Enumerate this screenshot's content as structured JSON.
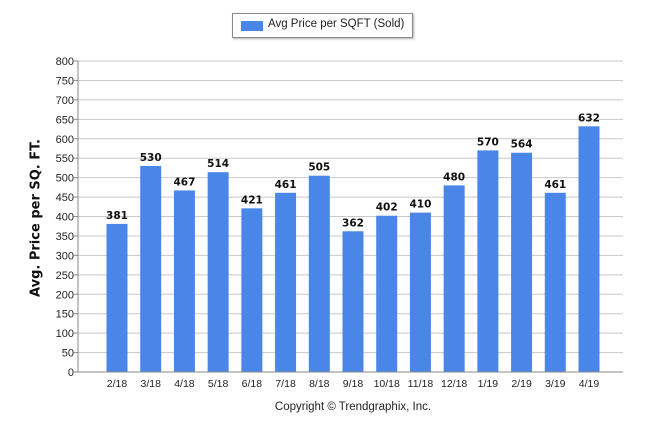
{
  "legend": {
    "label": "Avg Price per SQFT (Sold)"
  },
  "footer": {
    "copyright": "Copyright © Trendgraphix, Inc."
  },
  "colors": {
    "bar": "#4a86e8",
    "grid": "#c8c8c8",
    "axis": "#888888"
  },
  "chart_data": {
    "type": "bar",
    "title": "",
    "xlabel": "",
    "ylabel": "Avg. Price per SQ. FT.",
    "categories": [
      "2/18",
      "3/18",
      "4/18",
      "5/18",
      "6/18",
      "7/18",
      "8/18",
      "9/18",
      "10/18",
      "11/18",
      "12/18",
      "1/19",
      "2/19",
      "3/19",
      "4/19"
    ],
    "series": [
      {
        "name": "Avg Price per SQFT (Sold)",
        "values": [
          381,
          530,
          467,
          514,
          421,
          461,
          505,
          362,
          402,
          410,
          480,
          570,
          564,
          461,
          632
        ]
      }
    ],
    "ylim": [
      0,
      800
    ],
    "yticks": [
      0,
      50,
      100,
      150,
      200,
      250,
      300,
      350,
      400,
      450,
      500,
      550,
      600,
      650,
      700,
      750,
      800
    ],
    "grid": true,
    "legend_position": "top-center",
    "data_labels": true
  }
}
